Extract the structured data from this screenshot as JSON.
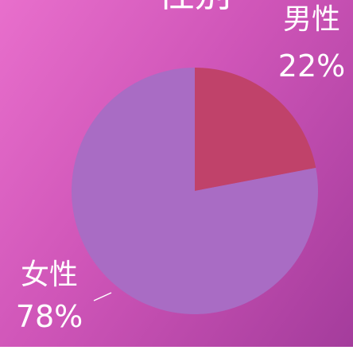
{
  "chart_data": {
    "type": "pie",
    "title": "性别",
    "categories": [
      "男性",
      "女性"
    ],
    "values": [
      22,
      78
    ],
    "value_labels": [
      "22%",
      "78%"
    ],
    "colors": [
      "#c0426a",
      "#a96cc4"
    ]
  }
}
